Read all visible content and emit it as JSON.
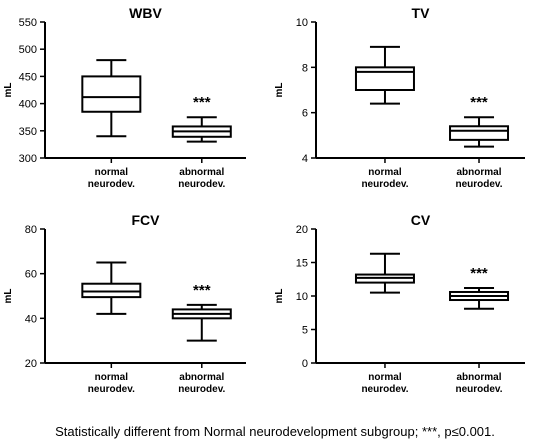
{
  "caption": "Statistically different from Normal neurodevelopment subgroup; ***, p≤0.001.",
  "chart_data": [
    {
      "type": "box",
      "title": "WBV",
      "ylabel": "mL",
      "ylim": [
        300,
        550
      ],
      "yticks": [
        300,
        350,
        400,
        450,
        500,
        550
      ],
      "categories": [
        [
          "normal",
          "neurodev."
        ],
        [
          "abnormal",
          "neurodev."
        ]
      ],
      "boxes": [
        {
          "min": 340,
          "q1": 385,
          "median": 412,
          "q3": 450,
          "max": 480
        },
        {
          "min": 330,
          "q1": 339,
          "median": 349,
          "q3": 358,
          "max": 375
        }
      ],
      "annotations": [
        "",
        "***"
      ]
    },
    {
      "type": "box",
      "title": "TV",
      "ylabel": "mL",
      "ylim": [
        4,
        10
      ],
      "yticks": [
        4,
        6,
        8,
        10
      ],
      "categories": [
        [
          "normal",
          "neurodev."
        ],
        [
          "abnormal",
          "neurodev."
        ]
      ],
      "boxes": [
        {
          "min": 6.4,
          "q1": 7.0,
          "median": 7.8,
          "q3": 8.0,
          "max": 8.9
        },
        {
          "min": 4.5,
          "q1": 4.8,
          "median": 5.2,
          "q3": 5.4,
          "max": 5.8
        }
      ],
      "annotations": [
        "",
        "***"
      ]
    },
    {
      "type": "box",
      "title": "FCV",
      "ylabel": "mL",
      "ylim": [
        20,
        80
      ],
      "yticks": [
        20,
        40,
        60,
        80
      ],
      "categories": [
        [
          "normal",
          "neurodev."
        ],
        [
          "abnormal",
          "neurodev."
        ]
      ],
      "boxes": [
        {
          "min": 42,
          "q1": 49.5,
          "median": 52,
          "q3": 55.5,
          "max": 65
        },
        {
          "min": 30,
          "q1": 40,
          "median": 42,
          "q3": 44,
          "max": 46
        }
      ],
      "annotations": [
        "",
        "***"
      ]
    },
    {
      "type": "box",
      "title": "CV",
      "ylabel": "mL",
      "ylim": [
        0,
        20
      ],
      "yticks": [
        0,
        5,
        10,
        15,
        20
      ],
      "categories": [
        [
          "normal",
          "neurodev."
        ],
        [
          "abnormal",
          "neurodev."
        ]
      ],
      "boxes": [
        {
          "min": 10.5,
          "q1": 12,
          "median": 12.7,
          "q3": 13.2,
          "max": 16.3
        },
        {
          "min": 8.1,
          "q1": 9.4,
          "median": 10,
          "q3": 10.6,
          "max": 11.2
        }
      ],
      "annotations": [
        "",
        "***"
      ]
    }
  ]
}
